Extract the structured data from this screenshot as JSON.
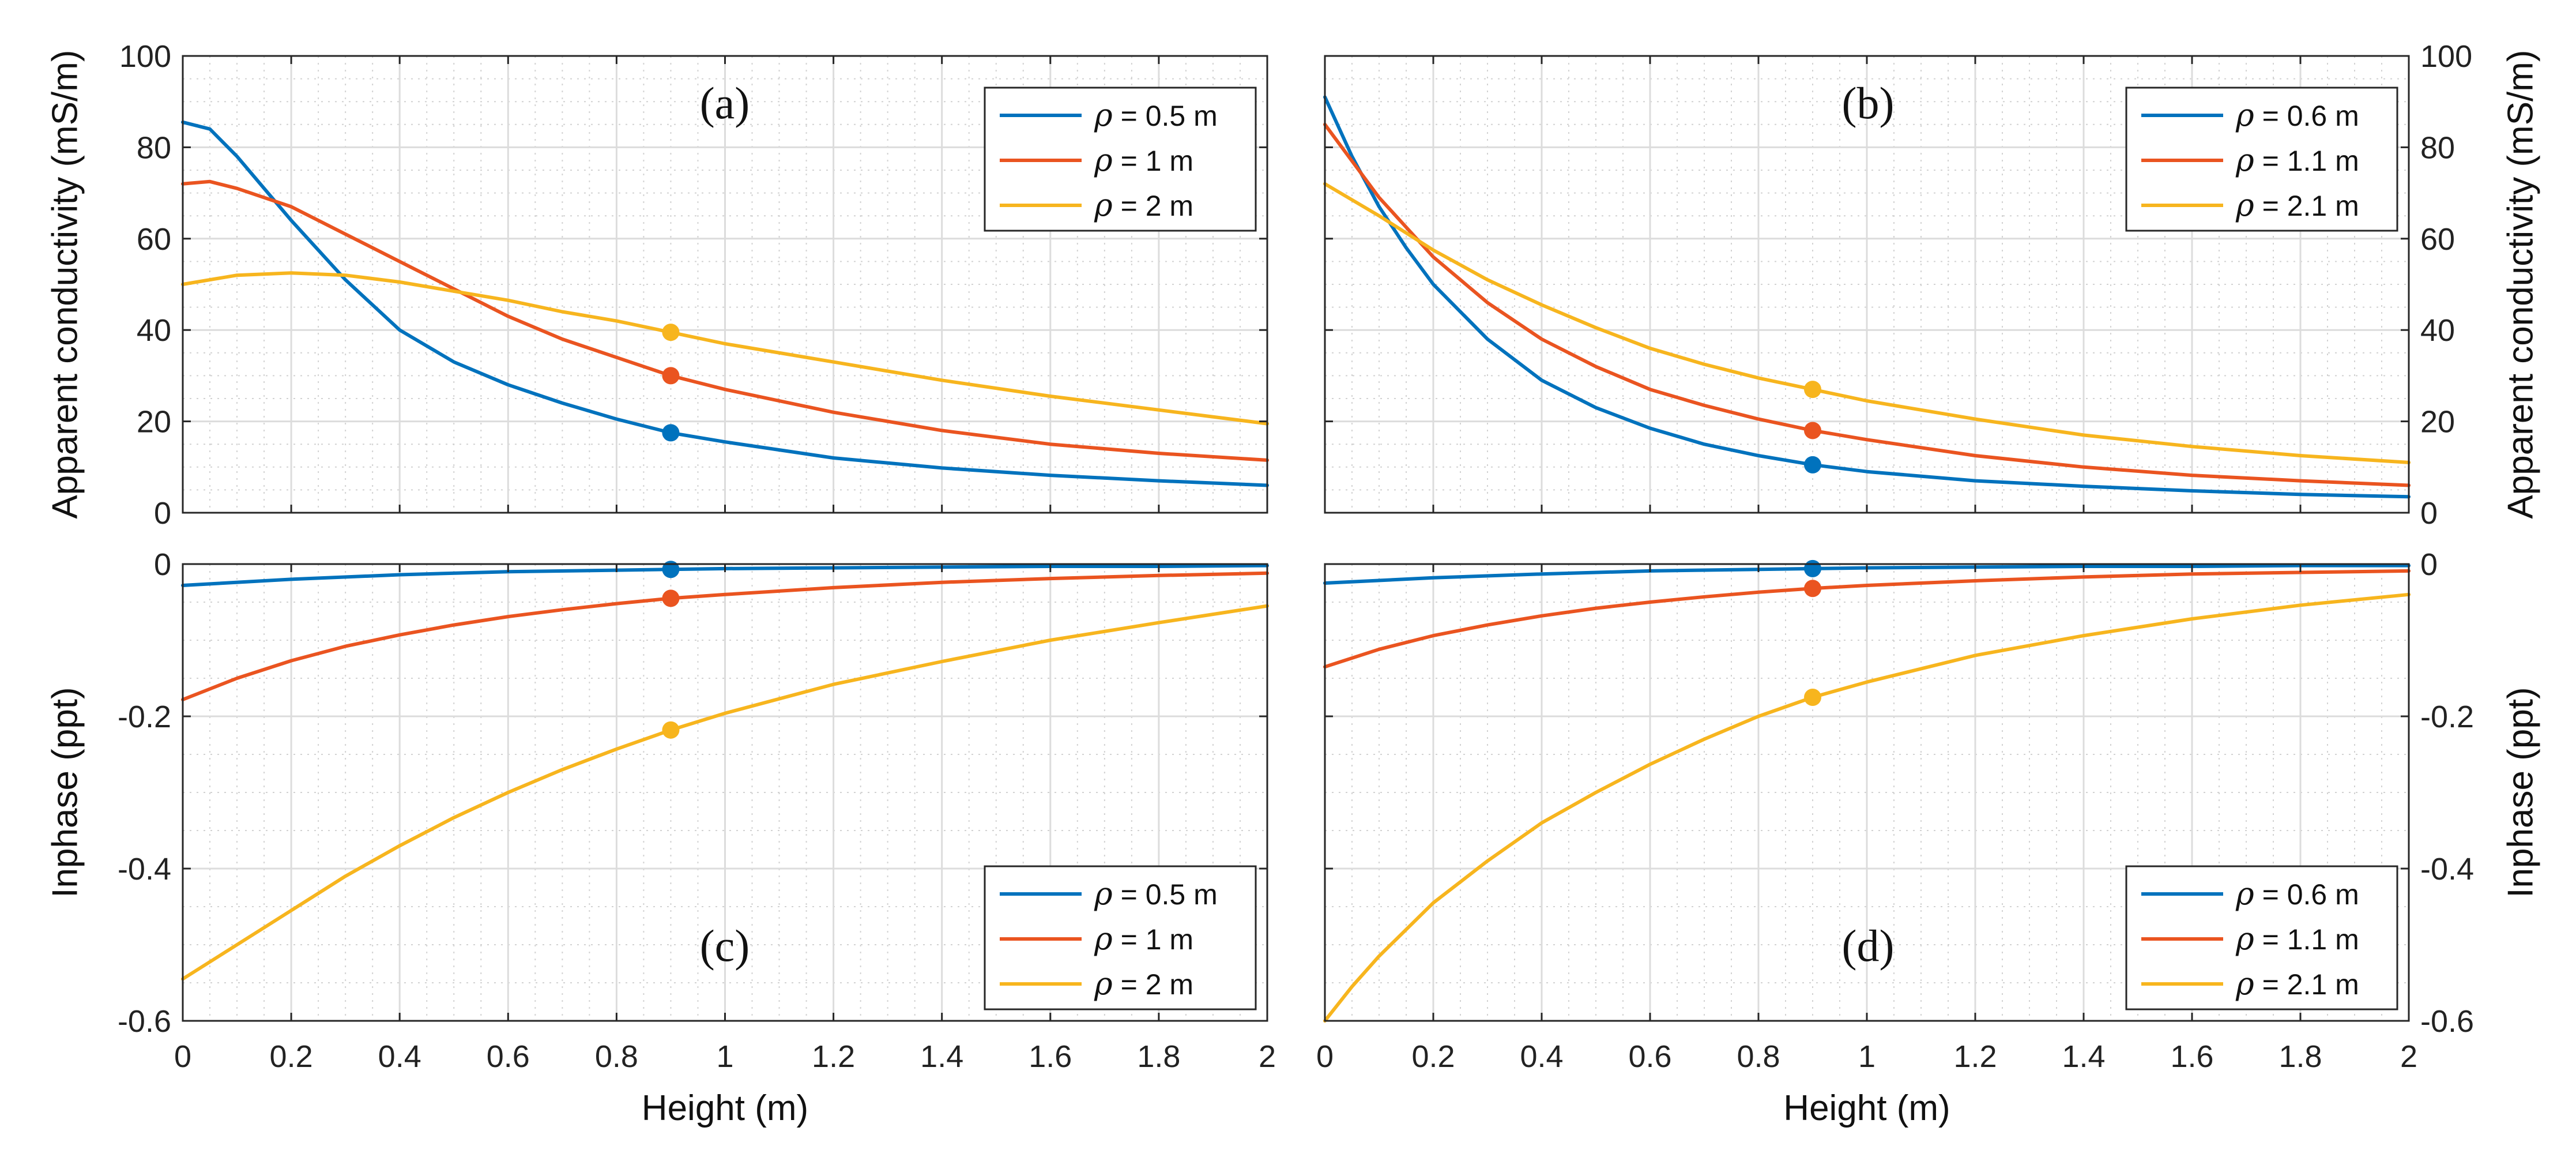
{
  "colors": {
    "blue": "#0072BD",
    "orange": "#EA5420",
    "yellow": "#F7B51E"
  },
  "chart_data": [
    {
      "panel": "(a)",
      "type": "line",
      "xlabel": "",
      "ylabel": "Apparent conductivity (mS/m)",
      "xlim": [
        0,
        2
      ],
      "ylim": [
        0,
        100
      ],
      "xticks": [
        "0",
        "0.2",
        "0.4",
        "0.6",
        "0.8",
        "1",
        "1.2",
        "1.4",
        "1.6",
        "1.8",
        "2"
      ],
      "yticks": [
        "0",
        "20",
        "40",
        "60",
        "80",
        "100"
      ],
      "grid": true,
      "legend": "top-right",
      "marker_x": 0.9,
      "series": [
        {
          "name": "ρ = 0.5 m",
          "color": "#0072BD",
          "x": [
            0,
            0.05,
            0.1,
            0.15,
            0.2,
            0.3,
            0.4,
            0.5,
            0.6,
            0.7,
            0.8,
            0.9,
            1.0,
            1.2,
            1.4,
            1.6,
            1.8,
            2.0
          ],
          "y": [
            85.5,
            84,
            78,
            71,
            64,
            51,
            40,
            33,
            28,
            24,
            20.5,
            17.5,
            15.5,
            12,
            9.8,
            8.2,
            7,
            6
          ]
        },
        {
          "name": "ρ = 1 m",
          "color": "#EA5420",
          "x": [
            0,
            0.05,
            0.1,
            0.2,
            0.3,
            0.4,
            0.5,
            0.6,
            0.7,
            0.8,
            0.9,
            1.0,
            1.2,
            1.4,
            1.6,
            1.8,
            2.0
          ],
          "y": [
            72,
            72.5,
            71,
            67,
            61,
            55,
            49,
            43,
            38,
            34,
            30,
            27,
            22,
            18,
            15,
            13,
            11.5
          ]
        },
        {
          "name": "ρ = 2 m",
          "color": "#F7B51E",
          "x": [
            0,
            0.1,
            0.2,
            0.3,
            0.4,
            0.5,
            0.6,
            0.7,
            0.8,
            0.9,
            1.0,
            1.2,
            1.4,
            1.6,
            1.8,
            2.0
          ],
          "y": [
            50,
            52,
            52.5,
            52,
            50.5,
            48.5,
            46.5,
            44,
            42,
            39.5,
            37,
            33,
            29,
            25.5,
            22.5,
            19.5
          ]
        }
      ],
      "markers": [
        17.5,
        30,
        39.5
      ]
    },
    {
      "panel": "(b)",
      "type": "line",
      "xlabel": "",
      "ylabel": "Apparent conductivity (mS/m)",
      "xlim": [
        0,
        2
      ],
      "ylim": [
        0,
        100
      ],
      "xticks": [
        "0",
        "0.2",
        "0.4",
        "0.6",
        "0.8",
        "1",
        "1.2",
        "1.4",
        "1.6",
        "1.8",
        "2"
      ],
      "yticks": [
        "0",
        "20",
        "40",
        "60",
        "80",
        "100"
      ],
      "grid": true,
      "legend": "top-right",
      "marker_x": 0.9,
      "series": [
        {
          "name": "ρ = 0.6 m",
          "color": "#0072BD",
          "x": [
            0,
            0.05,
            0.1,
            0.15,
            0.2,
            0.3,
            0.4,
            0.5,
            0.6,
            0.7,
            0.8,
            0.9,
            1.0,
            1.2,
            1.4,
            1.6,
            1.8,
            2.0
          ],
          "y": [
            91,
            78,
            67,
            58,
            50,
            38,
            29,
            23,
            18.5,
            15,
            12.5,
            10.5,
            9,
            7,
            5.8,
            4.8,
            4,
            3.5
          ]
        },
        {
          "name": "ρ = 1.1 m",
          "color": "#EA5420",
          "x": [
            0,
            0.1,
            0.2,
            0.3,
            0.4,
            0.5,
            0.6,
            0.7,
            0.8,
            0.9,
            1.0,
            1.2,
            1.4,
            1.6,
            1.8,
            2.0
          ],
          "y": [
            85,
            69,
            56,
            46,
            38,
            32,
            27,
            23.5,
            20.5,
            18,
            16,
            12.5,
            10,
            8.2,
            7,
            6
          ]
        },
        {
          "name": "ρ = 2.1 m",
          "color": "#F7B51E",
          "x": [
            0,
            0.1,
            0.2,
            0.3,
            0.4,
            0.5,
            0.6,
            0.7,
            0.8,
            0.9,
            1.0,
            1.2,
            1.4,
            1.6,
            1.8,
            2.0
          ],
          "y": [
            72,
            65,
            57.5,
            51,
            45.5,
            40.5,
            36,
            32.5,
            29.5,
            27,
            24.5,
            20.5,
            17,
            14.5,
            12.5,
            11
          ]
        }
      ],
      "markers": [
        10.5,
        18,
        27
      ]
    },
    {
      "panel": "(c)",
      "type": "line",
      "xlabel": "Height (m)",
      "ylabel": "Inphase (ppt)",
      "xlim": [
        0,
        2
      ],
      "ylim": [
        -0.6,
        0
      ],
      "xticks": [
        "0",
        "0.2",
        "0.4",
        "0.6",
        "0.8",
        "1",
        "1.2",
        "1.4",
        "1.6",
        "1.8",
        "2"
      ],
      "yticks": [
        "-0.6",
        "-0.4",
        "-0.2",
        "0"
      ],
      "grid": true,
      "legend": "bottom-right",
      "marker_x": 0.9,
      "series": [
        {
          "name": "ρ = 0.5 m",
          "color": "#0072BD",
          "x": [
            0,
            0.2,
            0.4,
            0.6,
            0.8,
            0.9,
            1.0,
            1.2,
            1.4,
            1.6,
            1.8,
            2.0
          ],
          "y": [
            -0.028,
            -0.02,
            -0.014,
            -0.01,
            -0.008,
            -0.007,
            -0.006,
            -0.005,
            -0.004,
            -0.003,
            -0.003,
            -0.002
          ]
        },
        {
          "name": "ρ = 1 m",
          "color": "#EA5420",
          "x": [
            0,
            0.1,
            0.2,
            0.3,
            0.4,
            0.5,
            0.6,
            0.7,
            0.8,
            0.9,
            1.0,
            1.2,
            1.4,
            1.6,
            1.8,
            2.0
          ],
          "y": [
            -0.178,
            -0.15,
            -0.127,
            -0.108,
            -0.093,
            -0.08,
            -0.069,
            -0.06,
            -0.052,
            -0.045,
            -0.04,
            -0.031,
            -0.024,
            -0.019,
            -0.015,
            -0.012
          ]
        },
        {
          "name": "ρ = 2 m",
          "color": "#F7B51E",
          "x": [
            0,
            0.1,
            0.2,
            0.3,
            0.4,
            0.5,
            0.6,
            0.7,
            0.8,
            0.9,
            1.0,
            1.2,
            1.4,
            1.6,
            1.8,
            2.0
          ],
          "y": [
            -0.545,
            -0.5,
            -0.455,
            -0.41,
            -0.37,
            -0.333,
            -0.3,
            -0.27,
            -0.243,
            -0.218,
            -0.196,
            -0.158,
            -0.128,
            -0.1,
            -0.077,
            -0.055
          ]
        }
      ],
      "markers": [
        -0.007,
        -0.045,
        -0.218
      ]
    },
    {
      "panel": "(d)",
      "type": "line",
      "xlabel": "Height (m)",
      "ylabel": "Inphase (ppt)",
      "xlim": [
        0,
        2
      ],
      "ylim": [
        -0.6,
        0
      ],
      "xticks": [
        "0",
        "0.2",
        "0.4",
        "0.6",
        "0.8",
        "1",
        "1.2",
        "1.4",
        "1.6",
        "1.8",
        "2"
      ],
      "yticks": [
        "-0.6",
        "-0.4",
        "-0.2",
        "0"
      ],
      "grid": true,
      "legend": "bottom-right",
      "marker_x": 0.9,
      "series": [
        {
          "name": "ρ = 0.6 m",
          "color": "#0072BD",
          "x": [
            0,
            0.2,
            0.4,
            0.6,
            0.8,
            0.9,
            1.0,
            1.2,
            1.4,
            1.6,
            1.8,
            2.0
          ],
          "y": [
            -0.025,
            -0.018,
            -0.013,
            -0.009,
            -0.007,
            -0.006,
            -0.005,
            -0.004,
            -0.003,
            -0.003,
            -0.002,
            -0.002
          ]
        },
        {
          "name": "ρ = 1.1 m",
          "color": "#EA5420",
          "x": [
            0,
            0.1,
            0.2,
            0.3,
            0.4,
            0.5,
            0.6,
            0.7,
            0.8,
            0.9,
            1.0,
            1.2,
            1.4,
            1.6,
            1.8,
            2.0
          ],
          "y": [
            -0.135,
            -0.112,
            -0.094,
            -0.08,
            -0.068,
            -0.058,
            -0.05,
            -0.043,
            -0.037,
            -0.032,
            -0.028,
            -0.022,
            -0.017,
            -0.013,
            -0.011,
            -0.009
          ]
        },
        {
          "name": "ρ = 2.1 m",
          "color": "#F7B51E",
          "x": [
            0,
            0.05,
            0.1,
            0.2,
            0.3,
            0.4,
            0.5,
            0.6,
            0.7,
            0.8,
            0.9,
            1.0,
            1.2,
            1.4,
            1.6,
            1.8,
            2.0
          ],
          "y": [
            -0.6,
            -0.555,
            -0.515,
            -0.445,
            -0.39,
            -0.34,
            -0.3,
            -0.263,
            -0.23,
            -0.2,
            -0.175,
            -0.155,
            -0.12,
            -0.094,
            -0.072,
            -0.054,
            -0.04
          ]
        }
      ],
      "markers": [
        -0.006,
        -0.032,
        -0.175
      ]
    }
  ]
}
